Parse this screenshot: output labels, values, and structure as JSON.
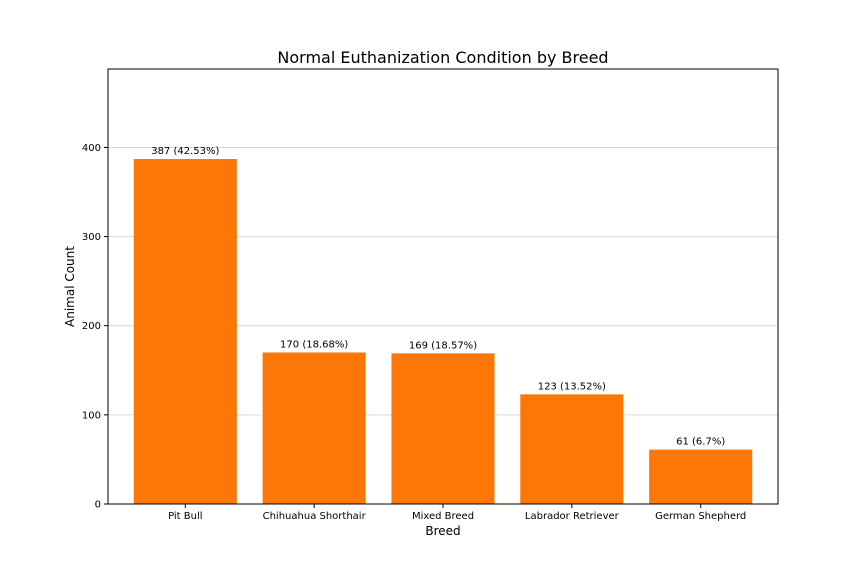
{
  "chart_data": {
    "type": "bar",
    "title": "Normal Euthanization Condition by Breed",
    "xlabel": "Breed",
    "ylabel": "Animal Count",
    "categories": [
      "Pit Bull",
      "Chihuahua Shorthair",
      "Mixed Breed",
      "Labrador Retriever",
      "German Shepherd"
    ],
    "values": [
      387,
      170,
      169,
      123,
      61
    ],
    "data_labels": [
      "387 (42.53%)",
      "170 (18.68%)",
      "169 (18.57%)",
      "123 (13.52%)",
      "61 (6.7%)"
    ],
    "ylim": [
      0,
      488
    ],
    "yticks": [
      0,
      100,
      200,
      300,
      400
    ],
    "grid": "y",
    "bar_color": "#fd7608",
    "grid_color": "#d9d9d9",
    "axis_color": "#000000"
  }
}
